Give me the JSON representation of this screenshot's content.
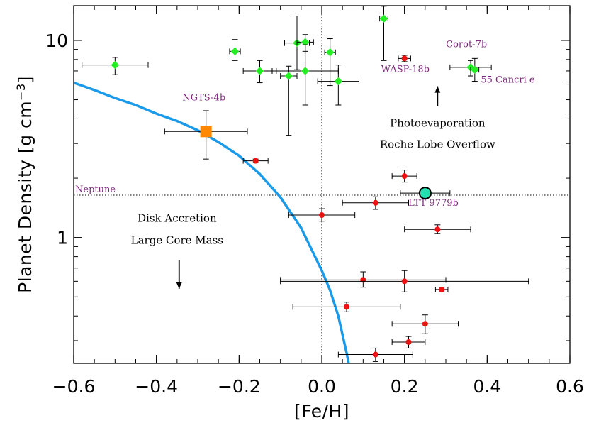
{
  "chart_data": {
    "type": "scatter",
    "title": "",
    "xlabel": "[Fe/H]",
    "ylabel": "Planet Density",
    "ylabel_units": "[g cm",
    "ylabel_exp": "−3",
    "ylabel_close": "]",
    "xlim": [
      -0.6,
      0.6
    ],
    "ylim": [
      0.23,
      15.0
    ],
    "yscale": "log",
    "x_ticks": [
      -0.6,
      -0.4,
      -0.2,
      0.0,
      0.2,
      0.4,
      0.6
    ],
    "x_tick_labels": [
      "−0.6",
      "−0.4",
      "−0.2",
      "0.0",
      "0.2",
      "0.4",
      "0.6"
    ],
    "y_ticks": [
      1,
      10
    ],
    "y_tick_labels": [
      "1",
      "10"
    ],
    "reference_lines": {
      "neptune_density": 1.64,
      "neptune_label": "Neptune",
      "solar_metallicity": 0.0
    },
    "series": [
      {
        "name": "green",
        "color": "#22ee22",
        "points": [
          {
            "x": -0.5,
            "y": 7.5,
            "xerr": [
              0.08,
              0.08
            ],
            "yerr": [
              0.8,
              0.7
            ]
          },
          {
            "x": -0.21,
            "y": 8.8,
            "xerr": [
              0.013,
              0.013
            ],
            "yerr": [
              0.9,
              1.3
            ]
          },
          {
            "x": -0.15,
            "y": 7.0,
            "xerr": [
              0.04,
              0.04
            ],
            "yerr": [
              0.9,
              0.9
            ]
          },
          {
            "x": -0.08,
            "y": 6.6,
            "xerr": [
              0.02,
              0.02
            ],
            "yerr": [
              3.3,
              0.8
            ]
          },
          {
            "x": -0.06,
            "y": 9.7,
            "xerr": [
              0.03,
              0.03
            ],
            "yerr": [
              2.6,
              3.6
            ]
          },
          {
            "x": -0.04,
            "y": 9.8,
            "xerr": [
              0.02,
              0.02
            ],
            "yerr": [
              1.0,
              0.9
            ]
          },
          {
            "x": -0.04,
            "y": 7.0,
            "xerr": [
              0.08,
              0.08
            ],
            "yerr": [
              2.3,
              2.5
            ]
          },
          {
            "x": 0.02,
            "y": 8.7,
            "xerr": [
              0.013,
              0.013
            ],
            "yerr": [
              2.8,
              1.5
            ]
          },
          {
            "x": 0.04,
            "y": 6.2,
            "xerr": [
              0.05,
              0.05
            ],
            "yerr": [
              1.5,
              1.3
            ]
          },
          {
            "x": 0.15,
            "y": 12.9,
            "xerr": [
              0.01,
              0.01
            ],
            "yerr": [
              5.0,
              2.0
            ]
          },
          {
            "x": 0.36,
            "y": 7.3,
            "xerr": [
              0.05,
              0.05
            ],
            "yerr": [
              0.7,
              0.6
            ]
          },
          {
            "x": 0.37,
            "y": 7.1,
            "xerr": [
              0.01,
              0.01
            ],
            "yerr": [
              0.9,
              1.0
            ]
          }
        ]
      },
      {
        "name": "red",
        "color": "#ee1111",
        "points": [
          {
            "x": 0.2,
            "y": 8.1,
            "xerr": [
              0.015,
              0.015
            ],
            "yerr": [
              0.3,
              0.3
            ]
          },
          {
            "x": -0.16,
            "y": 2.45,
            "xerr": [
              0.03,
              0.03
            ],
            "yerr": [
              0.05,
              0.05
            ]
          },
          {
            "x": 0.2,
            "y": 2.05,
            "xerr": [
              0.03,
              0.03
            ],
            "yerr": [
              0.14,
              0.15
            ]
          },
          {
            "x": 0.13,
            "y": 1.5,
            "xerr": [
              0.08,
              0.08
            ],
            "yerr": [
              0.11,
              0.11
            ]
          },
          {
            "x": 0.0,
            "y": 1.3,
            "xerr": [
              0.08,
              0.08
            ],
            "yerr": [
              0.09,
              0.1
            ]
          },
          {
            "x": 0.28,
            "y": 1.1,
            "xerr": [
              0.08,
              0.08
            ],
            "yerr": [
              0.05,
              0.06
            ]
          },
          {
            "x": 0.1,
            "y": 0.61,
            "xerr": [
              0.2,
              0.2
            ],
            "yerr": [
              0.05,
              0.06
            ]
          },
          {
            "x": 0.2,
            "y": 0.6,
            "xerr": [
              0.3,
              0.3
            ],
            "yerr": [
              0.07,
              0.08
            ]
          },
          {
            "x": 0.29,
            "y": 0.545,
            "xerr": [
              0.015,
              0.015
            ],
            "yerr": [
              0.01,
              0.01
            ]
          },
          {
            "x": 0.06,
            "y": 0.445,
            "xerr": [
              0.13,
              0.13
            ],
            "yerr": [
              0.025,
              0.025
            ]
          },
          {
            "x": 0.25,
            "y": 0.365,
            "xerr": [
              0.08,
              0.08
            ],
            "yerr": [
              0.04,
              0.04
            ]
          },
          {
            "x": 0.21,
            "y": 0.295,
            "xerr": [
              0.04,
              0.04
            ],
            "yerr": [
              0.02,
              0.02
            ]
          },
          {
            "x": 0.13,
            "y": 0.255,
            "xerr": [
              0.09,
              0.09
            ],
            "yerr": [
              0.02,
              0.02
            ]
          }
        ]
      }
    ],
    "highlights": [
      {
        "name": "NGTS-4b",
        "x": -0.28,
        "y": 3.45,
        "xerr": [
          0.1,
          0.1
        ],
        "yerr": [
          0.95,
          0.95
        ],
        "color": "#ff8800",
        "marker": "square"
      },
      {
        "name": "LTT 9779b",
        "x": 0.25,
        "y": 1.68,
        "xerr": [
          0.06,
          0.06
        ],
        "yerr": [
          0.03,
          0.03
        ],
        "color": "#22e0b0",
        "marker": "circle"
      }
    ],
    "curve": {
      "color": "#1a9ae8",
      "x": [
        -0.6,
        -0.55,
        -0.5,
        -0.45,
        -0.4,
        -0.35,
        -0.3,
        -0.25,
        -0.2,
        -0.15,
        -0.1,
        -0.05,
        0.0,
        0.02,
        0.04,
        0.06,
        0.065
      ],
      "y": [
        6.1,
        5.6,
        5.1,
        4.7,
        4.25,
        3.9,
        3.5,
        3.05,
        2.6,
        2.1,
        1.6,
        1.12,
        0.68,
        0.54,
        0.4,
        0.26,
        0.23
      ]
    },
    "annotations": [
      {
        "id": "ngts",
        "text": "NGTS-4b",
        "x": -0.285,
        "y": 4.95
      },
      {
        "id": "wasp",
        "text": "WASP-18b",
        "x": 0.202,
        "y": 6.9
      },
      {
        "id": "corot",
        "text": "Corot-7b",
        "x": 0.35,
        "y": 9.25
      },
      {
        "id": "cancri",
        "text": "55 Cancri e",
        "x": 0.45,
        "y": 6.1
      },
      {
        "id": "ltt",
        "text": "LTT 9779b",
        "x": 0.27,
        "y": 1.45
      },
      {
        "id": "photo1",
        "text": "Photoevaporation",
        "x": 0.28,
        "y": 3.65
      },
      {
        "id": "photo2",
        "text": "Roche Lobe Overflow",
        "x": 0.28,
        "y": 2.85
      },
      {
        "id": "disk1",
        "text": "Disk Accretion",
        "x": -0.35,
        "y": 1.2
      },
      {
        "id": "disk2",
        "text": "Large Core Mass",
        "x": -0.35,
        "y": 0.93
      }
    ],
    "arrows": [
      {
        "id": "arrow-up",
        "x": 0.28,
        "y_from": 4.65,
        "y_to": 5.85
      },
      {
        "id": "arrow-down",
        "x": -0.345,
        "y_from": 0.77,
        "y_to": 0.55
      }
    ]
  }
}
